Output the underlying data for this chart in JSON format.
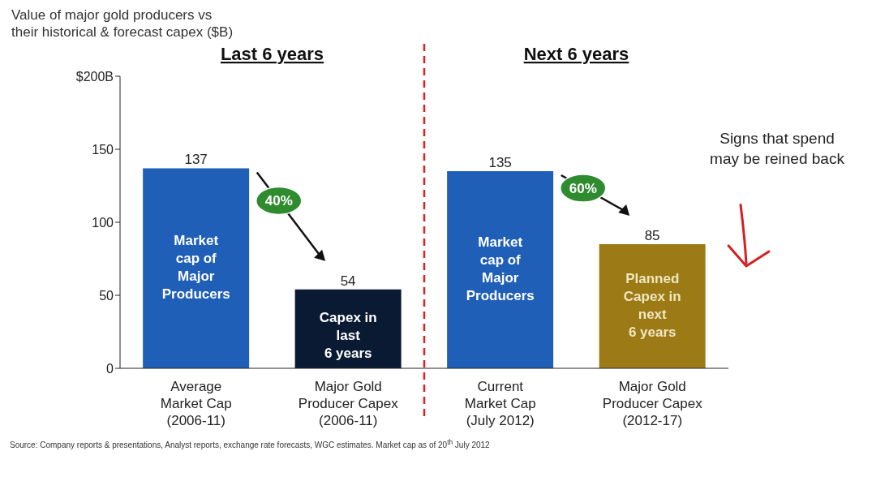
{
  "chart_data": {
    "type": "bar",
    "title": "Value of major gold producers vs\ntheir historical & forecast capex ($B)",
    "categories": [
      "Average\nMarket Cap\n(2006-11)",
      "Major Gold\nProducer Capex\n(2006-11)",
      "Current\nMarket Cap\n(July 2012)",
      "Major Gold\nProducer Capex\n(2012-17)"
    ],
    "values": [
      137,
      54,
      135,
      85
    ],
    "colors": [
      "#1f5fb8",
      "#0b1a33",
      "#1f5fb8",
      "#9c7b16"
    ],
    "ylim": [
      0,
      200
    ],
    "yticks": [
      0,
      50,
      100,
      150,
      {
        "value": 200,
        "label": "$200B"
      }
    ],
    "data_labels": true,
    "annotations": [
      "Last 6 years",
      "Next 6 years",
      "Market\ncap of\nMajor\nProducers",
      "Capex in\nlast\n6 years",
      "Market\ncap of\nMajor\nProducers",
      "Planned\nCapex in\nnext\n6 years",
      "40%",
      "60%",
      "Signs that spend\nmay be reined back",
      "Source: Company reports & presentations, Analyst reports, exchange rate forecasts, WGC estimates. Market cap as of 20$^{th}$ July 2012"
    ]
  }
}
